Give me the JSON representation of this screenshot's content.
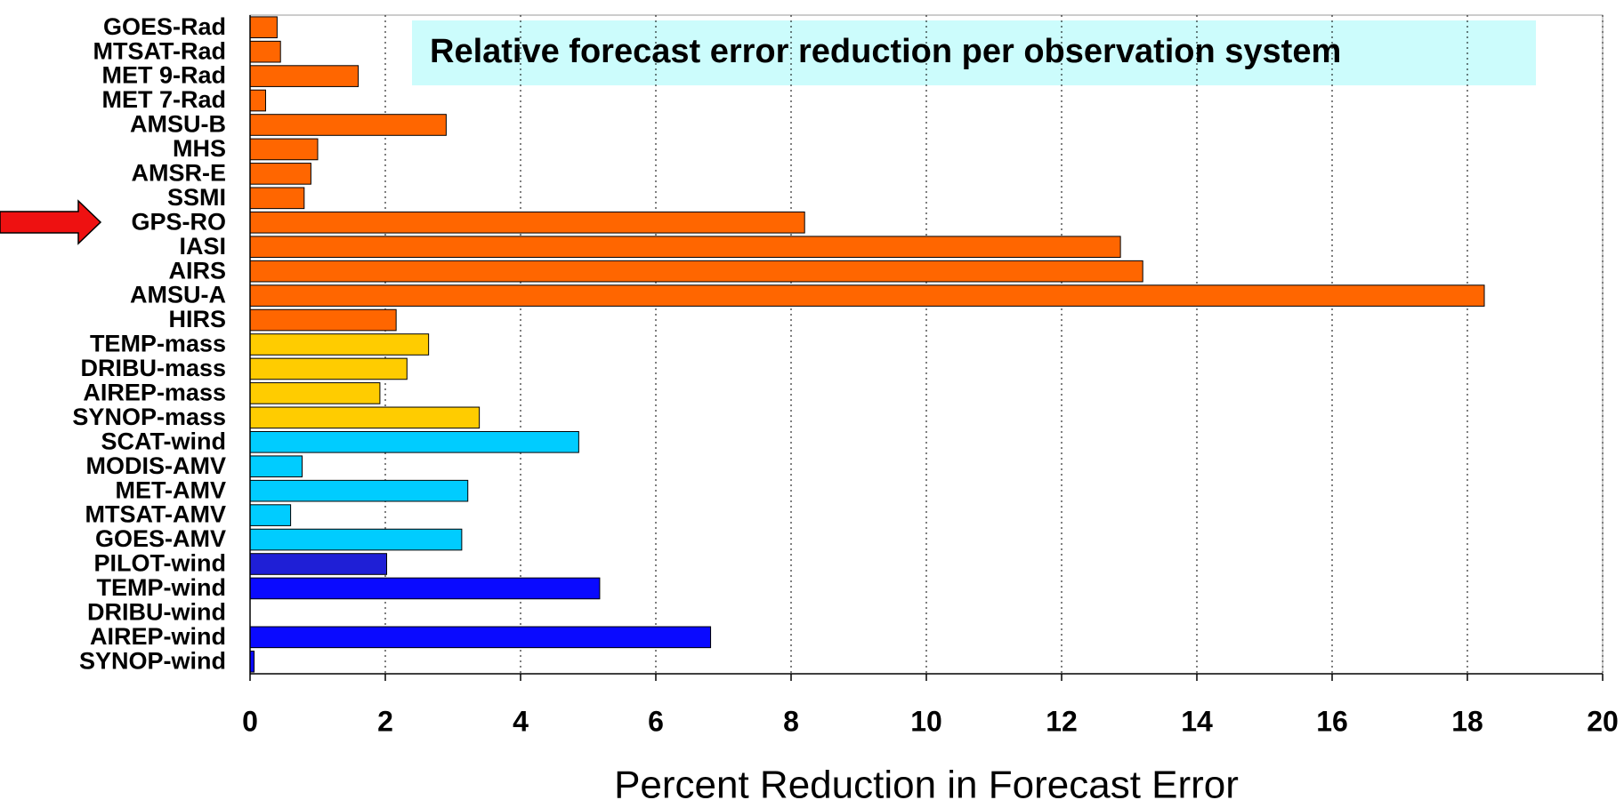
{
  "chart_data": {
    "type": "bar",
    "orientation": "horizontal",
    "title": "Relative forecast error reduction per observation system",
    "x_label": "Percent Reduction in Forecast Error",
    "categories": [
      "GOES-Rad",
      "MTSAT-Rad",
      "MET 9-Rad",
      "MET 7-Rad",
      "AMSU-B",
      "MHS",
      "AMSR-E",
      "SSMI",
      "GPS-RO",
      "IASI",
      "AIRS",
      "AMSU-A",
      "HIRS",
      "TEMP-mass",
      "DRIBU-mass",
      "AIREP-mass",
      "SYNOP-mass",
      "SCAT-wind",
      "MODIS-AMV",
      "MET-AMV",
      "MTSAT-AMV",
      "GOES-AMV",
      "PILOT-wind",
      "TEMP-wind",
      "DRIBU-wind",
      "AIREP-wind",
      "SYNOP-wind"
    ],
    "values": [
      0.4,
      0.45,
      1.6,
      0.23,
      2.9,
      1.0,
      0.9,
      0.8,
      8.2,
      12.87,
      13.2,
      18.25,
      2.16,
      2.64,
      2.32,
      1.92,
      3.39,
      4.86,
      0.77,
      3.22,
      0.6,
      3.13,
      2.02,
      5.17,
      0,
      6.81,
      0.06
    ],
    "colors": [
      "#ff6600",
      "#ff6600",
      "#ff6600",
      "#ff6600",
      "#ff6600",
      "#ff6600",
      "#ff6600",
      "#ff6600",
      "#ff6600",
      "#ff6600",
      "#ff6600",
      "#ff6600",
      "#ff6600",
      "#ffcc00",
      "#ffcc00",
      "#ffcc00",
      "#ffcc00",
      "#00ccff",
      "#00ccff",
      "#00ccff",
      "#00ccff",
      "#00ccff",
      "#1f1fd6",
      "#0a0aff",
      "#0a0aff",
      "#0a0aff",
      "#0a0aff"
    ],
    "xlim": [
      0,
      20
    ],
    "xticks": [
      0,
      2,
      4,
      6,
      8,
      10,
      12,
      14,
      16,
      18,
      20
    ],
    "grid": true
  }
}
